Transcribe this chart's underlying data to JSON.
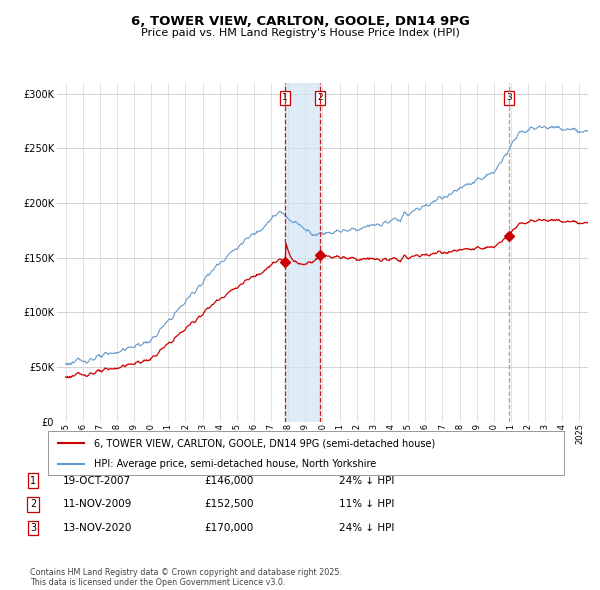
{
  "title": "6, TOWER VIEW, CARLTON, GOOLE, DN14 9PG",
  "subtitle": "Price paid vs. HM Land Registry's House Price Index (HPI)",
  "legend_line1": "6, TOWER VIEW, CARLTON, GOOLE, DN14 9PG (semi-detached house)",
  "legend_line2": "HPI: Average price, semi-detached house, North Yorkshire",
  "footnote": "Contains HM Land Registry data © Crown copyright and database right 2025.\nThis data is licensed under the Open Government Licence v3.0.",
  "table_rows": [
    {
      "num": "1",
      "date": "19-OCT-2007",
      "price": "£146,000",
      "change": "24% ↓ HPI"
    },
    {
      "num": "2",
      "date": "11-NOV-2009",
      "price": "£152,500",
      "change": "11% ↓ HPI"
    },
    {
      "num": "3",
      "date": "13-NOV-2020",
      "price": "£170,000",
      "change": "24% ↓ HPI"
    }
  ],
  "sale_dates": [
    2007.8,
    2009.85,
    2020.87
  ],
  "sale_prices": [
    146000,
    152500,
    170000
  ],
  "vline_colors": [
    "#cc0000",
    "#cc0000",
    "#999999"
  ],
  "shade_color": "#d0e4f5",
  "hpi_line_color": "#6699cc",
  "price_line_color": "#cc0000",
  "background_color": "#ffffff",
  "plot_bg_color": "#ffffff",
  "grid_color": "#cccccc",
  "ylim": [
    0,
    310000
  ],
  "yticks": [
    0,
    50000,
    100000,
    150000,
    200000,
    250000,
    300000
  ],
  "xlim": [
    1994.5,
    2025.5
  ],
  "xticks": [
    1995,
    1996,
    1997,
    1998,
    1999,
    2000,
    2001,
    2002,
    2003,
    2004,
    2005,
    2006,
    2007,
    2008,
    2009,
    2010,
    2011,
    2012,
    2013,
    2014,
    2015,
    2016,
    2017,
    2018,
    2019,
    2020,
    2021,
    2022,
    2023,
    2024,
    2025
  ]
}
